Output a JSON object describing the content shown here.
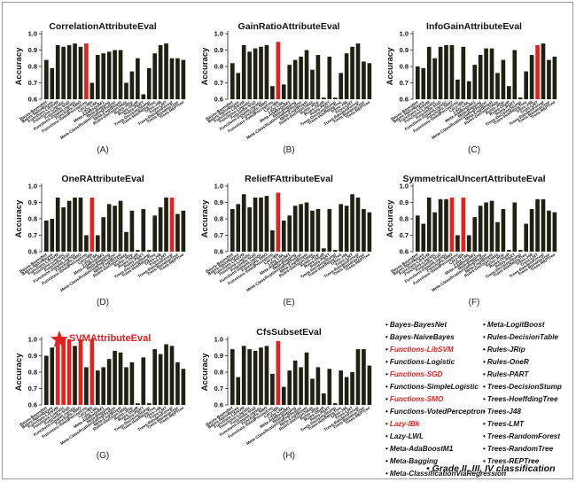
{
  "classifiers": [
    "Bayes-BayesNet",
    "Bayes-NaiveBayes",
    "Functions-LibSVM",
    "Functions-Logistic",
    "Functions-SGD",
    "Functions-SimpleLogistic",
    "Functions-SMO",
    "Functions-VotedPerceptron",
    "Lazy-IBk",
    "Lazy-LWL",
    "Meta-AdaBoostM1",
    "Meta-Bagging",
    "Meta-ClassificationViaRegression",
    "Meta-LogitBoost",
    "Rules-DecisionTable",
    "Rules-JRip",
    "Rules-OneR",
    "Rules-PART",
    "Trees-DecisionStump",
    "Trees-HoeffdingTree",
    "Trees-J48",
    "Trees-LMT",
    "Trees-RandomForest",
    "Trees-RandomTree",
    "Trees-REPTree"
  ],
  "tick_labels": [
    "Bayes-BayesNet",
    "Bayes-NaiveBayes",
    "Functions-LibSVM",
    "Functions-Logistic",
    "Functions-SGD",
    "Functions-SimpleLogistic",
    "Functions-SMO",
    "Functions-VotedPerceptron",
    "Lazy-IBk",
    "Lazy-LWL",
    "Meta-AdaBoostM1",
    "Meta-Bagging",
    "Meta-ClassificationViaRegression",
    "Meta-LogitBoost",
    "Rules-DecisionTable",
    "Rules-JRip",
    "Rules-OneR",
    "Rules-PART",
    "Trees-DecisionStump",
    "Trees-HoeffdingTree",
    "Trees-J48",
    "Trees-LMT",
    "Trees-RandomForest",
    "Trees-RandomTree",
    "Trees-REPTree"
  ],
  "colors": {
    "bar": "#1f1f12",
    "highlight": "#e8201c",
    "text": "#111111",
    "star": "#e02020"
  },
  "chart_data": [
    {
      "type": "bar",
      "panel": "A",
      "title": "CorrelationAttributeEval",
      "ylabel": "Accuracy",
      "ylim": [
        0.6,
        1.0
      ],
      "yticks": [
        "0.6",
        "0.7",
        "0.8",
        "0.9",
        "1.0"
      ],
      "highlight": [
        7
      ],
      "values": [
        0.84,
        0.79,
        0.93,
        0.92,
        0.93,
        0.94,
        0.92,
        0.94,
        0.7,
        0.87,
        0.88,
        0.89,
        0.9,
        0.9,
        0.7,
        0.77,
        0.85,
        0.63,
        0.79,
        0.88,
        0.93,
        0.94,
        0.85,
        0.85,
        0.84
      ]
    },
    {
      "type": "bar",
      "panel": "B",
      "title": "GainRatioAttributeEval",
      "ylabel": "Accuracy",
      "ylim": [
        0.6,
        1.0
      ],
      "yticks": [
        "0.6",
        "0.7",
        "0.8",
        "0.9",
        "1.0"
      ],
      "highlight": [
        8
      ],
      "values": [
        0.82,
        0.76,
        0.93,
        0.89,
        0.91,
        0.92,
        0.93,
        0.68,
        0.95,
        0.69,
        0.81,
        0.84,
        0.86,
        0.9,
        0.78,
        0.87,
        0.61,
        0.86,
        0.61,
        0.76,
        0.88,
        0.92,
        0.94,
        0.83,
        0.82
      ]
    },
    {
      "type": "bar",
      "panel": "C",
      "title": "InfoGainAttributeEval",
      "ylabel": "Accuracy",
      "ylim": [
        0.6,
        1.0
      ],
      "yticks": [
        "0.6",
        "0.7",
        "0.8",
        "0.9",
        "1.0"
      ],
      "highlight": [
        21
      ],
      "values": [
        0.8,
        0.79,
        0.92,
        0.85,
        0.92,
        0.93,
        0.93,
        0.72,
        0.92,
        0.71,
        0.81,
        0.87,
        0.91,
        0.91,
        0.76,
        0.84,
        0.68,
        0.9,
        0.61,
        0.77,
        0.87,
        0.93,
        0.94,
        0.84,
        0.86
      ]
    },
    {
      "type": "bar",
      "panel": "D",
      "title": "OneRAttributeEval",
      "ylabel": "Accuracy",
      "ylim": [
        0.6,
        1.0
      ],
      "yticks": [
        "0.6",
        "0.7",
        "0.8",
        "0.9",
        "1.0"
      ],
      "highlight": [
        8,
        22
      ],
      "values": [
        0.79,
        0.8,
        0.93,
        0.87,
        0.91,
        0.93,
        0.93,
        0.7,
        0.93,
        0.7,
        0.81,
        0.89,
        0.88,
        0.91,
        0.72,
        0.85,
        0.61,
        0.86,
        0.61,
        0.82,
        0.87,
        0.93,
        0.93,
        0.83,
        0.85
      ]
    },
    {
      "type": "bar",
      "panel": "E",
      "title": "ReliefFAttributeEval",
      "ylabel": "Accuracy",
      "ylim": [
        0.6,
        1.0
      ],
      "yticks": [
        "0.6",
        "0.7",
        "0.8",
        "0.9",
        "1.0"
      ],
      "highlight": [
        8
      ],
      "values": [
        0.86,
        0.89,
        0.95,
        0.87,
        0.93,
        0.93,
        0.94,
        0.73,
        0.96,
        0.79,
        0.82,
        0.88,
        0.89,
        0.9,
        0.85,
        0.86,
        0.62,
        0.86,
        0.61,
        0.89,
        0.88,
        0.95,
        0.93,
        0.86,
        0.84
      ]
    },
    {
      "type": "bar",
      "panel": "F",
      "title": "SymmetricalUncertAttributeEval",
      "ylabel": "Accuracy",
      "ylim": [
        0.6,
        1.0
      ],
      "yticks": [
        "0.6",
        "0.7",
        "0.8",
        "0.9",
        "1.0"
      ],
      "highlight": [
        6,
        8
      ],
      "values": [
        0.82,
        0.77,
        0.93,
        0.84,
        0.92,
        0.92,
        0.93,
        0.7,
        0.93,
        0.7,
        0.81,
        0.88,
        0.9,
        0.91,
        0.78,
        0.86,
        0.61,
        0.9,
        0.61,
        0.77,
        0.86,
        0.92,
        0.92,
        0.85,
        0.84
      ]
    },
    {
      "type": "bar",
      "panel": "G",
      "title": "SVMAttributeEval",
      "ylabel": "Accuracy",
      "ylim": [
        0.6,
        1.0
      ],
      "yticks": [
        "0.6",
        "0.7",
        "0.8",
        "0.9",
        "1.0"
      ],
      "highlight": [
        2,
        3,
        4,
        6,
        8
      ],
      "values": [
        0.9,
        0.95,
        1.0,
        1.0,
        1.0,
        0.96,
        1.0,
        0.83,
        1.0,
        0.81,
        0.83,
        0.88,
        0.93,
        0.92,
        0.83,
        0.86,
        0.61,
        0.89,
        0.61,
        0.94,
        0.91,
        0.97,
        0.96,
        0.86,
        0.82
      ]
    },
    {
      "type": "bar",
      "panel": "H",
      "title": "CfsSubsetEval",
      "ylabel": "Accuracy",
      "ylim": [
        0.6,
        1.0
      ],
      "yticks": [
        "0.6",
        "0.7",
        "0.8",
        "0.9",
        "1.0"
      ],
      "highlight": [
        8
      ],
      "values": [
        0.94,
        0.77,
        0.96,
        0.94,
        0.93,
        0.95,
        0.96,
        0.79,
        0.99,
        0.71,
        0.81,
        0.87,
        0.83,
        0.92,
        0.76,
        0.83,
        0.67,
        0.82,
        0.61,
        0.81,
        0.77,
        0.8,
        0.94,
        0.94,
        0.84
      ]
    }
  ],
  "panel_labels": [
    "(A)",
    "(B)",
    "(C)",
    "(D)",
    "(E)",
    "(F)",
    "(G)",
    "(H)"
  ],
  "legend": {
    "left": [
      {
        "text": "Bayes-BayesNet",
        "color": "#111111"
      },
      {
        "text": "Bayes-NaiveBayes",
        "color": "#111111"
      },
      {
        "text": "Functions-LibSVM",
        "color": "#e8201c"
      },
      {
        "text": "Functions-Logistic",
        "color": "#111111"
      },
      {
        "text": "Functions-SGD",
        "color": "#e8201c"
      },
      {
        "text": "Functions-SimpleLogistic",
        "color": "#111111"
      },
      {
        "text": "Functions-SMO",
        "color": "#e8201c"
      },
      {
        "text": "Functions-VotedPerceptron",
        "color": "#111111"
      },
      {
        "text": "Lazy-IBk",
        "color": "#e8201c"
      },
      {
        "text": "Lazy-LWL",
        "color": "#111111"
      },
      {
        "text": "Meta-AdaBoostM1",
        "color": "#111111"
      },
      {
        "text": "Meta-Bagging",
        "color": "#111111"
      },
      {
        "text": "Meta-ClassificationViaRegression",
        "color": "#111111"
      }
    ],
    "right": [
      {
        "text": "Meta-LogitBoost",
        "color": "#111111"
      },
      {
        "text": "Rules-DecisionTable",
        "color": "#111111"
      },
      {
        "text": "Rules-JRip",
        "color": "#111111"
      },
      {
        "text": "Rules-OneR",
        "color": "#111111"
      },
      {
        "text": "Rules-PART",
        "color": "#111111"
      },
      {
        "text": "Trees-DecisionStump",
        "color": "#111111"
      },
      {
        "text": "Trees-HoeffdingTree",
        "color": "#111111"
      },
      {
        "text": "Trees-J48",
        "color": "#111111"
      },
      {
        "text": "Trees-LMT",
        "color": "#111111"
      },
      {
        "text": "Trees-RandomForest",
        "color": "#111111"
      },
      {
        "text": "Trees-RandomTree",
        "color": "#111111"
      },
      {
        "text": "Trees-REPTree",
        "color": "#111111"
      }
    ]
  },
  "footer": {
    "bullet": "•",
    "text": "Grade II, III, IV classification"
  },
  "star_icon": "star-icon"
}
